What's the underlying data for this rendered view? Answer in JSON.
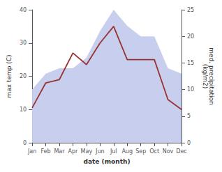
{
  "chart_data": {
    "type": "line",
    "categories": [
      "Jan",
      "Feb",
      "Mar",
      "Apr",
      "May",
      "Jun",
      "Jul",
      "Aug",
      "Sep",
      "Oct",
      "Nov",
      "Dec"
    ],
    "xlabel": "date (month)",
    "ylabel": "max temp (C)",
    "y2label": "med. precipitation\n(kg/m2)",
    "series": [
      {
        "type": "area",
        "color": "#c8cfee",
        "axis": "y2",
        "values": [
          10,
          13,
          14,
          14,
          16,
          21,
          25,
          22,
          20,
          20,
          14,
          13
        ]
      },
      {
        "type": "line",
        "color": "#993333",
        "values": [
          10.5,
          18.0,
          19.0,
          27.0,
          23.5,
          30.0,
          35.0,
          25.0,
          25.0,
          25.0,
          13.0,
          10.0
        ]
      }
    ],
    "ylim": [
      0,
      40
    ],
    "yticks": [
      0,
      10,
      20,
      30,
      40
    ],
    "y2lim": [
      0,
      25
    ],
    "y2ticks": [
      0,
      5,
      10,
      15,
      20,
      25
    ],
    "grid": false
  }
}
